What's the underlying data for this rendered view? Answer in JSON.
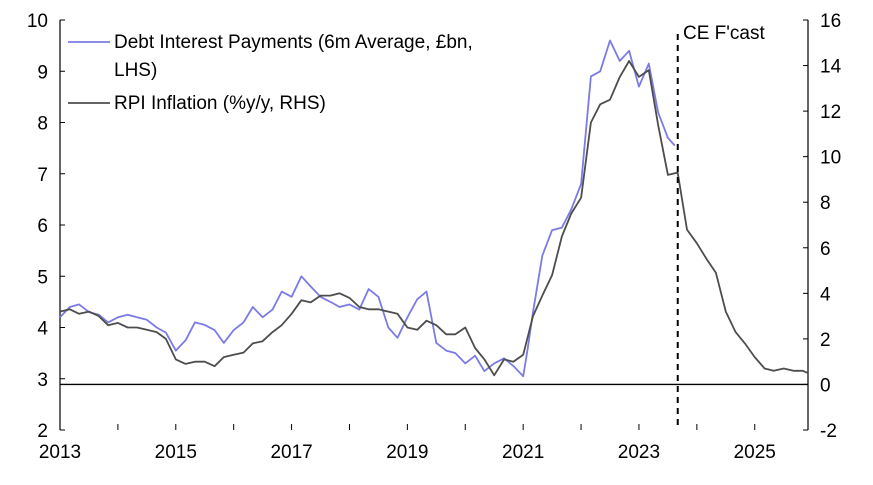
{
  "chart_data": {
    "type": "line",
    "annotation": "CE F'cast",
    "forecast_start": 2023.67,
    "x_ticks": [
      "2013",
      "2015",
      "2017",
      "2019",
      "2021",
      "2023",
      "2025"
    ],
    "xlim": [
      2013,
      2025.92
    ],
    "y_left": {
      "ylim": [
        2,
        10
      ],
      "ticks": [
        "2",
        "3",
        "4",
        "5",
        "6",
        "7",
        "8",
        "9",
        "10"
      ]
    },
    "y_right": {
      "ylim": [
        -2,
        16
      ],
      "ticks": [
        "-2",
        "0",
        "2",
        "4",
        "6",
        "8",
        "10",
        "12",
        "14",
        "16"
      ]
    },
    "zero_line_right": 0,
    "legend": {
      "placement": "top-left"
    },
    "series": [
      {
        "name": "Debt Interest Payments (6m Average, £bn,",
        "name_line2": "LHS)",
        "axis": "left",
        "color": "#7b7be6",
        "x": [
          2013.0,
          2013.17,
          2013.33,
          2013.5,
          2013.67,
          2013.83,
          2014.0,
          2014.17,
          2014.33,
          2014.5,
          2014.67,
          2014.83,
          2015.0,
          2015.17,
          2015.33,
          2015.5,
          2015.67,
          2015.83,
          2016.0,
          2016.17,
          2016.33,
          2016.5,
          2016.67,
          2016.83,
          2017.0,
          2017.17,
          2017.33,
          2017.5,
          2017.67,
          2017.83,
          2018.0,
          2018.17,
          2018.33,
          2018.5,
          2018.67,
          2018.83,
          2019.0,
          2019.17,
          2019.33,
          2019.5,
          2019.67,
          2019.83,
          2020.0,
          2020.17,
          2020.33,
          2020.5,
          2020.67,
          2020.83,
          2021.0,
          2021.08,
          2021.17,
          2021.33,
          2021.5,
          2021.67,
          2021.83,
          2022.0,
          2022.17,
          2022.33,
          2022.5,
          2022.67,
          2022.83,
          2023.0,
          2023.17,
          2023.33,
          2023.5,
          2023.62
        ],
        "values": [
          4.2,
          4.4,
          4.45,
          4.3,
          4.25,
          4.1,
          4.2,
          4.25,
          4.2,
          4.15,
          4.0,
          3.9,
          3.55,
          3.75,
          4.1,
          4.05,
          3.95,
          3.7,
          3.95,
          4.1,
          4.4,
          4.2,
          4.35,
          4.7,
          4.6,
          5.0,
          4.8,
          4.6,
          4.5,
          4.4,
          4.45,
          4.35,
          4.75,
          4.6,
          4.0,
          3.8,
          4.2,
          4.55,
          4.7,
          3.7,
          3.55,
          3.5,
          3.3,
          3.45,
          3.15,
          3.3,
          3.4,
          3.25,
          3.05,
          3.6,
          4.3,
          5.4,
          5.9,
          5.95,
          6.3,
          6.8,
          8.9,
          9.0,
          9.6,
          9.2,
          9.4,
          8.7,
          9.15,
          8.2,
          7.7,
          7.55
        ]
      },
      {
        "name": "RPI Inflation (%y/y, RHS)",
        "axis": "right",
        "color": "#4d4d4d",
        "x": [
          2013.0,
          2013.17,
          2013.33,
          2013.5,
          2013.67,
          2013.83,
          2014.0,
          2014.17,
          2014.33,
          2014.5,
          2014.67,
          2014.83,
          2015.0,
          2015.17,
          2015.33,
          2015.5,
          2015.67,
          2015.83,
          2016.0,
          2016.17,
          2016.33,
          2016.5,
          2016.67,
          2016.83,
          2017.0,
          2017.17,
          2017.33,
          2017.5,
          2017.67,
          2017.83,
          2018.0,
          2018.17,
          2018.33,
          2018.5,
          2018.67,
          2018.83,
          2019.0,
          2019.17,
          2019.33,
          2019.5,
          2019.67,
          2019.83,
          2020.0,
          2020.17,
          2020.33,
          2020.5,
          2020.67,
          2020.83,
          2021.0,
          2021.17,
          2021.33,
          2021.5,
          2021.67,
          2021.83,
          2022.0,
          2022.17,
          2022.33,
          2022.5,
          2022.67,
          2022.83,
          2023.0,
          2023.17,
          2023.33,
          2023.5,
          2023.67,
          2023.83,
          2024.0,
          2024.17,
          2024.33,
          2024.5,
          2024.67,
          2024.83,
          2025.0,
          2025.17,
          2025.33,
          2025.5,
          2025.67,
          2025.83,
          2025.92
        ],
        "values": [
          3.2,
          3.3,
          3.1,
          3.2,
          3.0,
          2.6,
          2.7,
          2.5,
          2.5,
          2.4,
          2.3,
          2.0,
          1.1,
          0.9,
          1.0,
          1.0,
          0.8,
          1.2,
          1.3,
          1.4,
          1.8,
          1.9,
          2.3,
          2.6,
          3.1,
          3.7,
          3.6,
          3.9,
          3.9,
          4.0,
          3.8,
          3.4,
          3.3,
          3.3,
          3.2,
          3.1,
          2.5,
          2.4,
          2.8,
          2.6,
          2.2,
          2.2,
          2.5,
          1.6,
          1.1,
          0.4,
          1.1,
          1.0,
          1.3,
          3.0,
          3.9,
          4.8,
          6.5,
          7.5,
          8.2,
          11.5,
          12.3,
          12.5,
          13.5,
          14.2,
          13.5,
          13.8,
          11.4,
          9.2,
          9.3,
          6.8,
          6.2,
          5.5,
          4.9,
          3.2,
          2.3,
          1.8,
          1.2,
          0.7,
          0.6,
          0.7,
          0.6,
          0.6,
          0.5
        ]
      }
    ]
  }
}
